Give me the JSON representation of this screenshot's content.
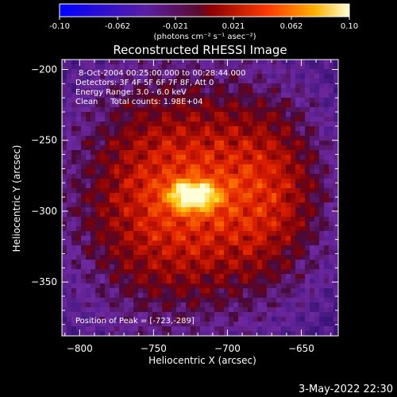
{
  "colorbar": {
    "ticks": [
      "-0.10",
      "-0.062",
      "-0.021",
      "0.021",
      "0.062",
      "0.10"
    ],
    "unit_label": "(photons cm⁻² s⁻¹ asec⁻²)",
    "min": -0.1,
    "max": 0.1
  },
  "annotations": {
    "time_range": "8-Oct-2004 00:25:00.000 to 00:28:44.000",
    "detectors": "Detectors: 3F 4F 5F 6F 7F 8F, Att 0",
    "energy_range": "Energy Range: 3.0 - 6.0 keV",
    "clean_info": "Clean     Total counts: 1.98E+04",
    "peak_position": "Position of Peak = [-723,-289]"
  },
  "footer": {
    "date": "3-May-2022 22:30"
  },
  "chart_data": {
    "type": "heatmap",
    "title": "Reconstructed RHESSI Image",
    "xlabel": "Heliocentric X (arcsec)",
    "ylabel": "Heliocentric Y (arcsec)",
    "xlim": [
      -812,
      -625
    ],
    "ylim": [
      -388,
      -193
    ],
    "xticks": [
      -800,
      -750,
      -700,
      -650
    ],
    "yticks": [
      -200,
      -250,
      -300,
      -350
    ],
    "peak": {
      "x": -723,
      "y": -289
    },
    "colormap": "blue-purple-red-orange-yellow-white",
    "colors": {
      "background": "#000000",
      "text": "#ffffff"
    }
  }
}
